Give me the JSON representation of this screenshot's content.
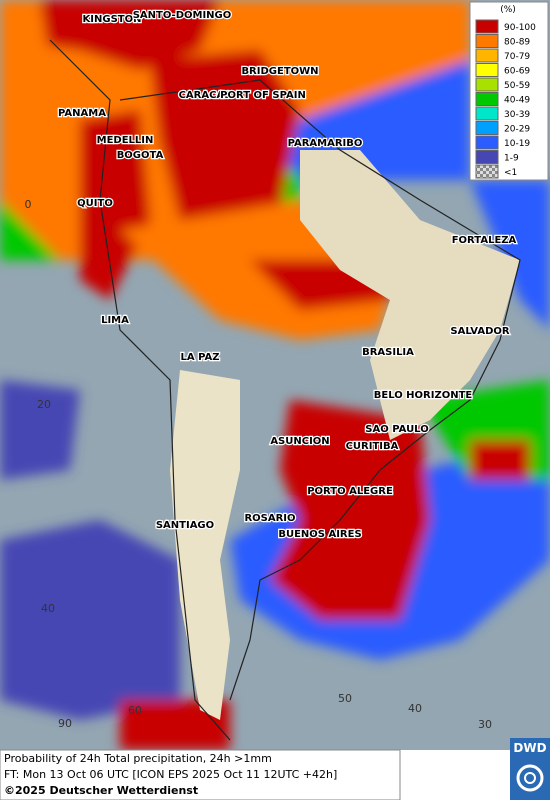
{
  "legend": {
    "title": "(%)",
    "items": [
      {
        "label": "90-100",
        "color": "#c80000"
      },
      {
        "label": "80-89",
        "color": "#ff7800"
      },
      {
        "label": "70-79",
        "color": "#ffb400"
      },
      {
        "label": "60-69",
        "color": "#ffff00"
      },
      {
        "label": "50-59",
        "color": "#a8e000"
      },
      {
        "label": "40-49",
        "color": "#00c800"
      },
      {
        "label": "30-39",
        "color": "#00e6c8"
      },
      {
        "label": "20-29",
        "color": "#00a0ff"
      },
      {
        "label": "10-19",
        "color": "#2a5cff"
      },
      {
        "label": "1-9",
        "color": "#4646b4"
      },
      {
        "label": "<1",
        "color": "#b4b4b4"
      }
    ]
  },
  "cities": [
    "KINGSTON",
    "SANTO-DOMINGO",
    "BRIDGETOWN",
    "PANAMA",
    "CARACAS",
    "PORT OF SPAIN",
    "MEDELLIN",
    "BOGOTA",
    "PARAMARIBO",
    "QUITO",
    "FORTALEZA",
    "LIMA",
    "SALVADOR",
    "BRASILIA",
    "LA PAZ",
    "BELO HORIZONTE",
    "SAO PAULO",
    "ASUNCION",
    "CURITIBA",
    "PORTO ALEGRE",
    "ROSARIO",
    "SANTIAGO",
    "BUENOS AIRES"
  ],
  "grid_labels": [
    "0",
    "20",
    "40",
    "90",
    "60",
    "50",
    "40",
    "30"
  ],
  "footer": {
    "line1": "Probability of 24h Total precipitation, 24h >1mm",
    "line2": "FT: Mon 13 Oct 06 UTC [ICON EPS 2025 Oct 11 12UTC +42h]",
    "copyright": "©2025 Deutscher Wetterdienst"
  },
  "logo": "DWD"
}
